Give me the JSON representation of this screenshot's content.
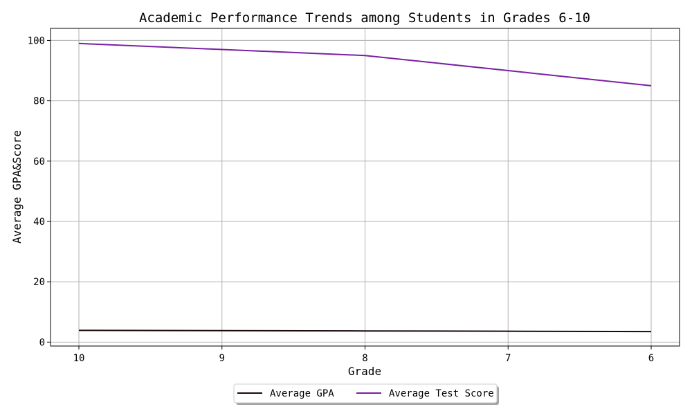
{
  "chart_data": {
    "type": "line",
    "title": "Academic Performance Trends among Students in Grades 6-10",
    "xlabel": "Grade",
    "ylabel": "Average GPA&Score",
    "categories": [
      "10",
      "9",
      "8",
      "7",
      "6"
    ],
    "series": [
      {
        "name": "Average GPA",
        "color": "#1a0a0a",
        "values": [
          3.9,
          3.8,
          3.7,
          3.6,
          3.5
        ]
      },
      {
        "name": "Average Test Score",
        "color": "#7a1fa2",
        "values": [
          99,
          97,
          95,
          90,
          85
        ]
      }
    ],
    "ylim": [
      -1.3,
      104
    ],
    "yticks": [
      0,
      20,
      40,
      60,
      80,
      100
    ],
    "grid": true,
    "legend_position": "bottom-center"
  }
}
